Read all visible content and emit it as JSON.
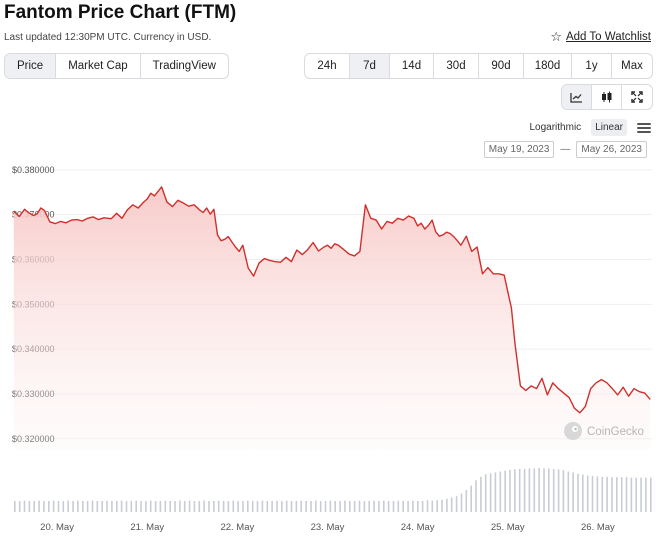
{
  "header": {
    "title": "Fantom Price Chart (FTM)",
    "updated": "Last updated 12:30PM UTC. Currency in USD.",
    "watchlist_label": "Add To Watchlist"
  },
  "metric_tabs": [
    {
      "label": "Price",
      "active": true
    },
    {
      "label": "Market Cap",
      "active": false
    },
    {
      "label": "TradingView",
      "active": false
    }
  ],
  "range_tabs": [
    {
      "label": "24h",
      "active": false
    },
    {
      "label": "7d",
      "active": true
    },
    {
      "label": "14d",
      "active": false
    },
    {
      "label": "30d",
      "active": false
    },
    {
      "label": "90d",
      "active": false
    },
    {
      "label": "180d",
      "active": false
    },
    {
      "label": "1y",
      "active": false
    },
    {
      "label": "Max",
      "active": false
    }
  ],
  "chart_types": [
    {
      "icon": "line-chart-icon",
      "active": true
    },
    {
      "icon": "candlestick-icon",
      "active": false
    },
    {
      "icon": "expand-icon",
      "active": false
    }
  ],
  "scale": {
    "log_label": "Logarithmic",
    "linear_label": "Linear",
    "active": "Linear"
  },
  "date_range": {
    "from": "May 19, 2023",
    "to": "May 26, 2023",
    "separator": "—"
  },
  "watermark": "CoinGecko",
  "colors": {
    "line": "#d0302c",
    "fill_top": "#f7c8c6",
    "volume": "#c8ccd4",
    "active_bg": "#eef0f3"
  },
  "chart_data": {
    "type": "area",
    "title": "",
    "xlabel": "",
    "ylabel": "",
    "ylim": [
      0.3175,
      0.3822
    ],
    "yticks": [
      "$0.380000",
      "$0.370000",
      "$0.360000",
      "$0.350000",
      "$0.340000",
      "$0.330000",
      "$0.320000"
    ],
    "ytick_values": [
      0.38,
      0.37,
      0.36,
      0.35,
      0.34,
      0.33,
      0.32
    ],
    "xticks": [
      "20. May",
      "21. May",
      "22. May",
      "23. May",
      "24. May",
      "25. May",
      "26. May"
    ],
    "xtick_values": [
      20,
      21,
      22,
      23,
      24,
      25,
      26
    ],
    "xlim": [
      19.5,
      26.6
    ],
    "x": [
      19.52,
      19.58,
      19.64,
      19.68,
      19.74,
      19.78,
      19.82,
      19.86,
      19.92,
      19.98,
      20.04,
      20.1,
      20.16,
      20.22,
      20.28,
      20.34,
      20.4,
      20.46,
      20.52,
      20.6,
      20.66,
      20.72,
      20.78,
      20.84,
      20.9,
      20.96,
      21.0,
      21.04,
      21.08,
      21.12,
      21.16,
      21.22,
      21.28,
      21.34,
      21.4,
      21.46,
      21.52,
      21.58,
      21.62,
      21.66,
      21.7,
      21.74,
      21.78,
      21.82,
      21.86,
      21.9,
      21.94,
      21.98,
      22.02,
      22.06,
      22.12,
      22.18,
      22.24,
      22.3,
      22.36,
      22.42,
      22.48,
      22.54,
      22.6,
      22.66,
      22.72,
      22.78,
      22.84,
      22.9,
      22.96,
      23.0,
      23.04,
      23.08,
      23.12,
      23.18,
      23.24,
      23.3,
      23.36,
      23.42,
      23.48,
      23.54,
      23.6,
      23.66,
      23.72,
      23.78,
      23.84,
      23.9,
      23.96,
      24.0,
      24.04,
      24.08,
      24.12,
      24.16,
      24.2,
      24.24,
      24.28,
      24.32,
      24.36,
      24.4,
      24.44,
      24.48,
      24.54,
      24.6,
      24.66,
      24.72,
      24.78,
      24.84,
      24.9,
      24.96,
      25.0,
      25.04,
      25.08,
      25.14,
      25.2,
      25.26,
      25.32,
      25.38,
      25.44,
      25.5,
      25.56,
      25.62,
      25.68,
      25.74,
      25.8,
      25.86,
      25.92,
      25.98,
      26.04,
      26.1,
      26.16,
      26.22,
      26.28,
      26.34,
      26.4,
      26.46,
      26.52,
      26.58
    ],
    "series": [
      {
        "values": [
          0.3708,
          0.3696,
          0.3712,
          0.3705,
          0.3698,
          0.3702,
          0.3715,
          0.3709,
          0.3684,
          0.368,
          0.3685,
          0.3682,
          0.3688,
          0.3689,
          0.3686,
          0.3692,
          0.3695,
          0.3689,
          0.3693,
          0.3691,
          0.3703,
          0.3692,
          0.3711,
          0.3722,
          0.3715,
          0.3728,
          0.3735,
          0.3748,
          0.3742,
          0.3752,
          0.3762,
          0.3728,
          0.3718,
          0.3732,
          0.3726,
          0.3719,
          0.3722,
          0.3711,
          0.3705,
          0.3715,
          0.3701,
          0.3712,
          0.3655,
          0.3642,
          0.3645,
          0.3651,
          0.3639,
          0.3628,
          0.3618,
          0.3632,
          0.3581,
          0.3563,
          0.3592,
          0.3602,
          0.3598,
          0.3595,
          0.3594,
          0.3605,
          0.3595,
          0.3621,
          0.3611,
          0.3622,
          0.3638,
          0.3619,
          0.3628,
          0.3632,
          0.3625,
          0.3635,
          0.3632,
          0.3622,
          0.3612,
          0.3608,
          0.3618,
          0.3722,
          0.3692,
          0.3688,
          0.3668,
          0.3685,
          0.3681,
          0.3692,
          0.3688,
          0.3697,
          0.3692,
          0.3675,
          0.3681,
          0.3668,
          0.3676,
          0.3688,
          0.3662,
          0.3652,
          0.3655,
          0.3661,
          0.3658,
          0.3651,
          0.3642,
          0.3632,
          0.3652,
          0.3618,
          0.3628,
          0.3568,
          0.3582,
          0.3568,
          0.3568,
          0.3565,
          0.3528,
          0.3492,
          0.3412,
          0.3318,
          0.3308,
          0.3318,
          0.3312,
          0.3335,
          0.3298,
          0.3325,
          0.3312,
          0.3302,
          0.3292,
          0.3268,
          0.3258,
          0.3272,
          0.3312,
          0.3325,
          0.3332,
          0.3325,
          0.3312,
          0.3298,
          0.3315,
          0.3295,
          0.3312,
          0.3305,
          0.3302,
          0.3288
        ]
      }
    ],
    "volume": [
      0.25,
      0.25,
      0.26,
      0.25,
      0.25,
      0.26,
      0.25,
      0.25,
      0.26,
      0.25,
      0.25,
      0.26,
      0.25,
      0.26,
      0.25,
      0.25,
      0.26,
      0.25,
      0.25,
      0.26,
      0.25,
      0.25,
      0.26,
      0.25,
      0.25,
      0.26,
      0.25,
      0.25,
      0.26,
      0.25,
      0.25,
      0.26,
      0.25,
      0.25,
      0.26,
      0.25,
      0.26,
      0.25,
      0.25,
      0.26,
      0.25,
      0.25,
      0.26,
      0.25,
      0.25,
      0.26,
      0.25,
      0.25,
      0.26,
      0.25,
      0.25,
      0.26,
      0.25,
      0.25,
      0.26,
      0.25,
      0.26,
      0.25,
      0.25,
      0.26,
      0.25,
      0.25,
      0.26,
      0.25,
      0.25,
      0.26,
      0.25,
      0.25,
      0.26,
      0.25,
      0.25,
      0.26,
      0.25,
      0.25,
      0.26,
      0.25,
      0.26,
      0.25,
      0.25,
      0.26,
      0.25,
      0.25,
      0.26,
      0.25,
      0.25,
      0.27,
      0.26,
      0.27,
      0.28,
      0.3,
      0.33,
      0.36,
      0.42,
      0.5,
      0.6,
      0.72,
      0.8,
      0.86,
      0.88,
      0.9,
      0.92,
      0.94,
      0.96,
      0.97,
      0.98,
      0.98,
      0.99,
      0.99,
      1.0,
      0.99,
      0.99,
      0.98,
      0.97,
      0.95,
      0.92,
      0.9,
      0.87,
      0.85,
      0.83,
      0.82,
      0.81,
      0.8,
      0.8,
      0.79,
      0.79,
      0.79,
      0.79,
      0.78,
      0.78,
      0.78,
      0.78,
      0.78
    ]
  }
}
